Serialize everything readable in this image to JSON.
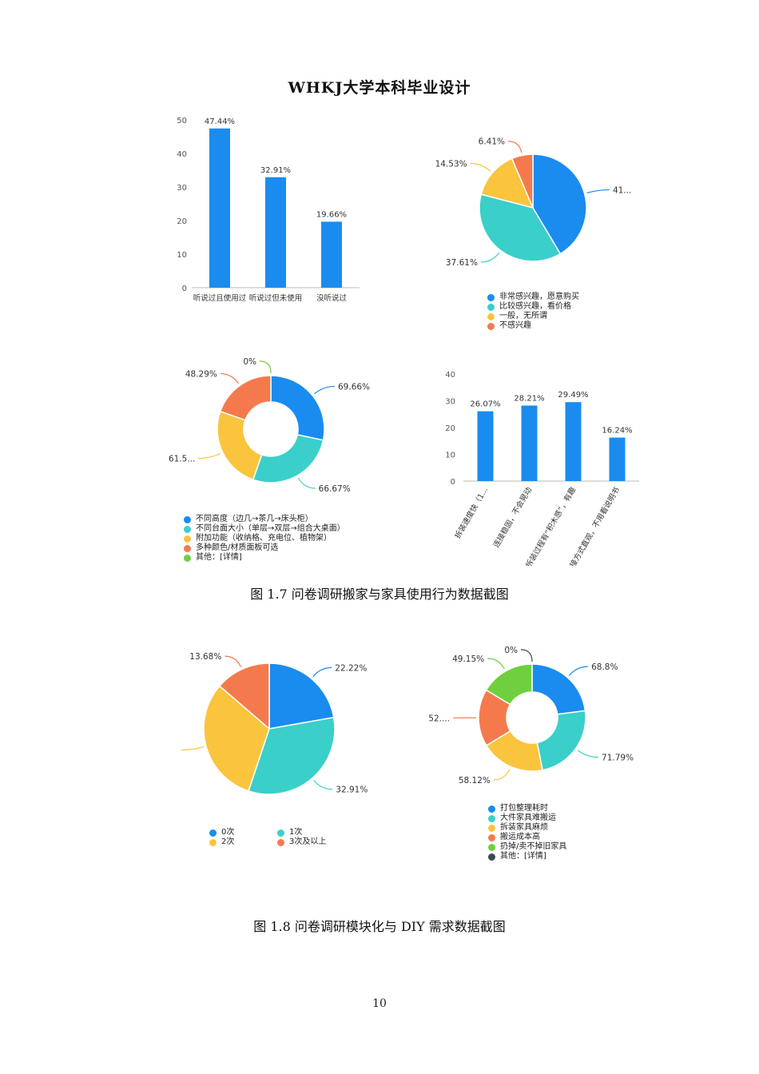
{
  "header": {
    "title": "WHKJ大学本科毕业设计"
  },
  "colors": {
    "blue": "#1a8cf0",
    "teal": "#3bcfca",
    "yellow": "#fbc43d",
    "orange": "#f47a4e",
    "green": "#6fcf3f",
    "dark": "#3b4a5a"
  },
  "chart_data": [
    {
      "id": "awareness-bar",
      "type": "bar",
      "categories": [
        "听说过且使用过",
        "听说过但未使用",
        "没听说过"
      ],
      "values": [
        47.44,
        32.91,
        19.66
      ],
      "data_labels": [
        "47.44%",
        "32.91%",
        "19.66%"
      ],
      "yticks": [
        "0",
        "10",
        "20",
        "30",
        "40",
        "50"
      ],
      "ylim": [
        0,
        50
      ],
      "color": "#1a8cf0"
    },
    {
      "id": "interest-pie",
      "type": "pie",
      "labels": [
        "非常感兴趣，愿意购买",
        "比较感兴趣，看价格",
        "一般，无所谓",
        "不感兴趣"
      ],
      "values": [
        41.45,
        37.61,
        14.53,
        6.41
      ],
      "data_labels": [
        "41...",
        "37.61%",
        "14.53%",
        "6.41%"
      ],
      "colors": [
        "#1a8cf0",
        "#3bcfca",
        "#fbc43d",
        "#f47a4e"
      ]
    },
    {
      "id": "function-donut",
      "type": "pie",
      "labels": [
        "不同高度（边几→茶几→床头柜）",
        "不同台面大小（单层→双层→组合大桌面）",
        "附加功能（收纳格、充电位、植物架）",
        "多种颜色/材质面板可选",
        "其他：[详情]"
      ],
      "values": [
        69.66,
        66.67,
        61.5,
        48.29,
        0
      ],
      "data_labels": [
        "69.66%",
        "66.67%",
        "61.5...",
        "48.29%",
        "0%"
      ],
      "colors": [
        "#1a8cf0",
        "#3bcfca",
        "#fbc43d",
        "#f47a4e",
        "#6fcf3f"
      ]
    },
    {
      "id": "connection-bar",
      "type": "bar",
      "categories": [
        "拆装速度快（1...",
        "连接稳固，不会晃动",
        "拆装过程有“积木感”，有趣",
        "连接方式直观，不用看说明书"
      ],
      "values": [
        26.07,
        28.21,
        29.49,
        16.24
      ],
      "data_labels": [
        "26.07%",
        "28.21%",
        "29.49%",
        "16.24%"
      ],
      "yticks": [
        "0",
        "10",
        "20",
        "30",
        "40"
      ],
      "ylim": [
        0,
        40
      ],
      "color": "#1a8cf0"
    },
    {
      "id": "moving-pie",
      "type": "pie",
      "labels": [
        "0次",
        "1次",
        "2次",
        "3次及以上"
      ],
      "values": [
        22.22,
        32.91,
        31.19,
        13.68
      ],
      "data_labels": [
        "22.22%",
        "32.91%",
        "",
        "13.68%"
      ],
      "colors": [
        "#1a8cf0",
        "#3bcfca",
        "#fbc43d",
        "#f47a4e"
      ]
    },
    {
      "id": "pain-donut",
      "type": "pie",
      "labels": [
        "打包整理耗时",
        "大件家具难搬运",
        "拆装家具麻烦",
        "搬运成本高",
        "扔掉/卖不掉旧家具",
        "其他：[详情]"
      ],
      "values": [
        68.8,
        71.79,
        58.12,
        52.0,
        49.15,
        0
      ],
      "data_labels": [
        "68.8%",
        "71.79%",
        "58.12%",
        "52....",
        "49.15%",
        "0%"
      ],
      "colors": [
        "#1a8cf0",
        "#3bcfca",
        "#fbc43d",
        "#f47a4e",
        "#6fcf3f",
        "#3b4a5a"
      ]
    }
  ],
  "captions": {
    "fig17": "图 1.7 问卷调研搬家与家具使用行为数据截图",
    "fig18": "图 1.8 问卷调研模块化与 DIY 需求数据截图"
  },
  "page_number": "10"
}
